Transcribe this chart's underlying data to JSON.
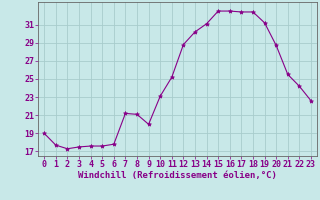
{
  "x": [
    0,
    1,
    2,
    3,
    4,
    5,
    6,
    7,
    8,
    9,
    10,
    11,
    12,
    13,
    14,
    15,
    16,
    17,
    18,
    19,
    20,
    21,
    22,
    23
  ],
  "y": [
    19.0,
    17.7,
    17.3,
    17.5,
    17.6,
    17.6,
    17.8,
    21.2,
    21.1,
    20.0,
    23.1,
    25.2,
    28.8,
    30.2,
    31.1,
    32.5,
    32.5,
    32.4,
    32.4,
    31.2,
    28.7,
    25.5,
    24.2,
    22.6
  ],
  "line_color": "#880088",
  "marker": "*",
  "marker_size": 3,
  "bg_color": "#c8e8e8",
  "grid_color": "#a8cccc",
  "xlabel": "Windchill (Refroidissement éolien,°C)",
  "yticks": [
    17,
    19,
    21,
    23,
    25,
    27,
    29,
    31
  ],
  "xticks": [
    0,
    1,
    2,
    3,
    4,
    5,
    6,
    7,
    8,
    9,
    10,
    11,
    12,
    13,
    14,
    15,
    16,
    17,
    18,
    19,
    20,
    21,
    22,
    23
  ],
  "ylim": [
    16.5,
    33.5
  ],
  "xlim": [
    -0.5,
    23.5
  ],
  "xlabel_fontsize": 6.5,
  "tick_fontsize": 6,
  "text_color": "#880088",
  "axis_color": "#666666"
}
